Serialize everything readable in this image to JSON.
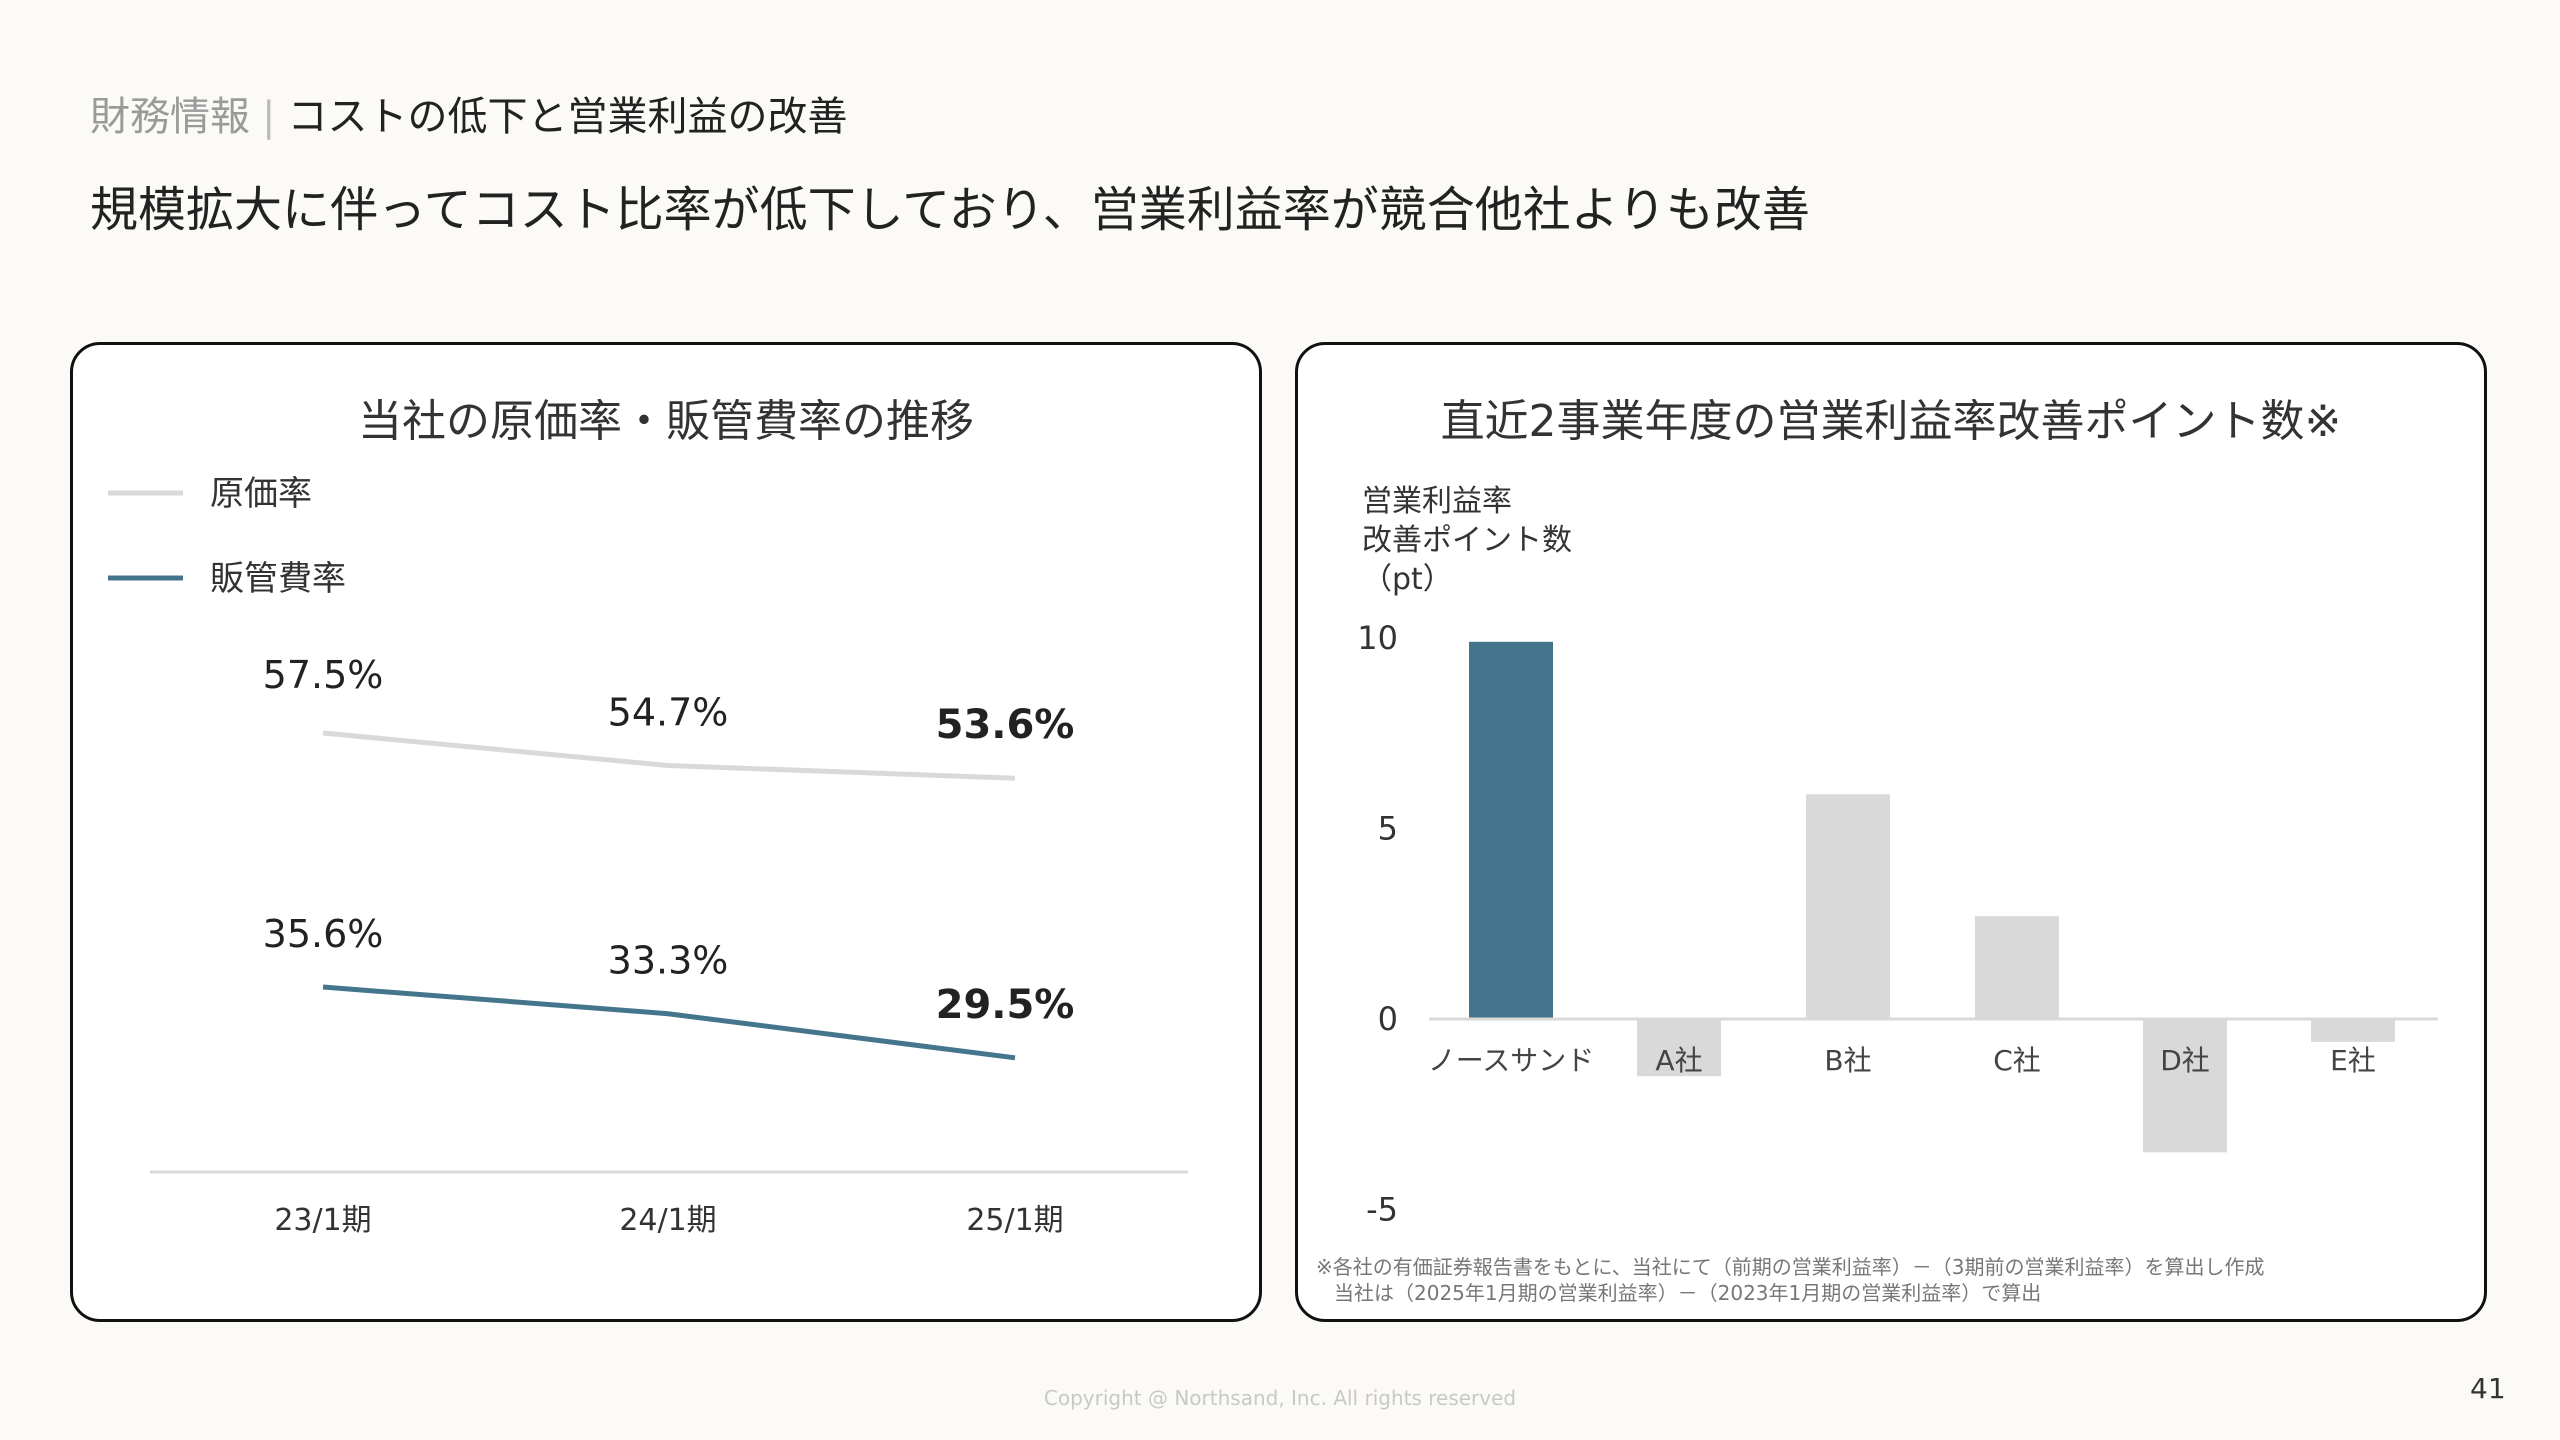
{
  "header": {
    "section": "財務情報",
    "separator": "|",
    "topic": "コストの低下と営業利益の改善",
    "headline": "規模拡大に伴ってコスト比率が低下しており、営業利益率が競合他社よりも改善"
  },
  "chart_data": [
    {
      "type": "line",
      "title": "当社の原価率・販管費率の推移",
      "categories": [
        "23/1期",
        "24/1期",
        "25/1期"
      ],
      "legend_position": "top-left",
      "grid": false,
      "series": [
        {
          "name": "原価率",
          "values": [
            57.5,
            54.7,
            53.6
          ],
          "labels": [
            "57.5%",
            "54.7%",
            "53.6%"
          ],
          "color": "#d9d9d9"
        },
        {
          "name": "販管費率",
          "values": [
            35.6,
            33.3,
            29.5
          ],
          "labels": [
            "35.6%",
            "33.3%",
            "29.5%"
          ],
          "color": "#44758c"
        }
      ]
    },
    {
      "type": "bar",
      "title": "直近2事業年度の営業利益率改善ポイント数※",
      "ylabel": [
        "営業利益率",
        "改善ポイント数",
        "（pt）"
      ],
      "categories": [
        "ノースサンド",
        "A社",
        "B社",
        "C社",
        "D社",
        "E社"
      ],
      "values": [
        9.9,
        -1.5,
        5.9,
        2.7,
        -3.5,
        -0.6
      ],
      "colors": [
        "#44758c",
        "#d9d9d9",
        "#d9d9d9",
        "#d9d9d9",
        "#d9d9d9",
        "#d9d9d9"
      ],
      "ylim": [
        -5,
        10
      ],
      "yticks": [
        "10",
        "5",
        "0",
        "-5"
      ],
      "grid": false
    }
  ],
  "footnote": {
    "line1": "※各社の有価証券報告書をもとに、当社にて（前期の営業利益率）－（3期前の営業利益率）を算出し作成",
    "line2": "当社は（2025年1月期の営業利益率）－（2023年1月期の営業利益率）で算出"
  },
  "footer": {
    "copyright": "Copyright @ Northsand, Inc. All rights reserved",
    "page_number": "41"
  }
}
